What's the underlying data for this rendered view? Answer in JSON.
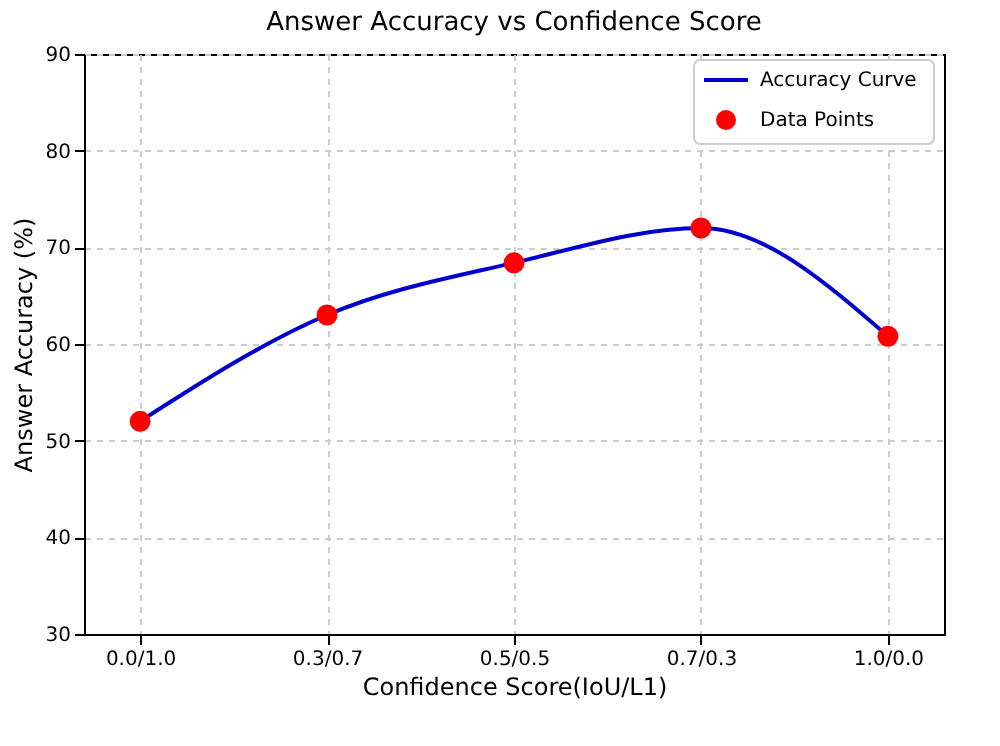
{
  "chart_data": {
    "type": "line",
    "title": "Answer Accuracy vs Confidence Score",
    "xlabel": "Confidence Score(IoU/L1)",
    "ylabel": "Answer Accuracy (%)",
    "categories": [
      "0.0/1.0",
      "0.3/0.7",
      "0.5/0.5",
      "0.7/0.3",
      "1.0/0.0"
    ],
    "series": [
      {
        "name": "Accuracy Curve",
        "color": "#0000cc",
        "values": [
          52.0,
          63.0,
          68.4,
          72.0,
          60.8
        ],
        "marker": "none",
        "line_style": "solid"
      },
      {
        "name": "Data Points",
        "type": "scatter",
        "color": "#ff0000",
        "values": [
          52.0,
          63.0,
          68.4,
          72.0,
          60.8
        ],
        "marker": "circle"
      }
    ],
    "ylim": [
      30,
      90
    ],
    "yticks": [
      30,
      40,
      50,
      60,
      70,
      80,
      90
    ],
    "grid": true,
    "legend": "top right"
  }
}
